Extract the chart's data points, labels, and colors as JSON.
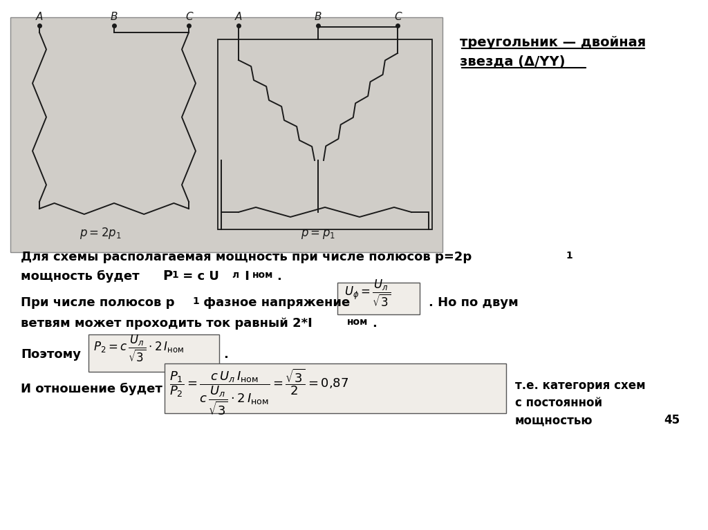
{
  "bg_color": "#ffffff",
  "title_text": "треугольник — двойная\nзвезда (Δ/YY)",
  "line1": "Для схемы располагаемая мощность при числе полюсов р=2р₁",
  "line2": "мощность будет Р₁ = с Uл Iном.",
  "line3": "При числе полюсов р₁ фазное напряжение",
  "line4": ". Но по двум",
  "line5": "ветвям может проходить ток равный 2*Iном.",
  "poeto": "Поэтому",
  "ioto": "И отношение будет",
  "te": "т.е. категория схем",
  "s_post": "с постоянной",
  "moshnost": "мощностью",
  "page_num": "45",
  "image_bg": "#d0cdc8"
}
